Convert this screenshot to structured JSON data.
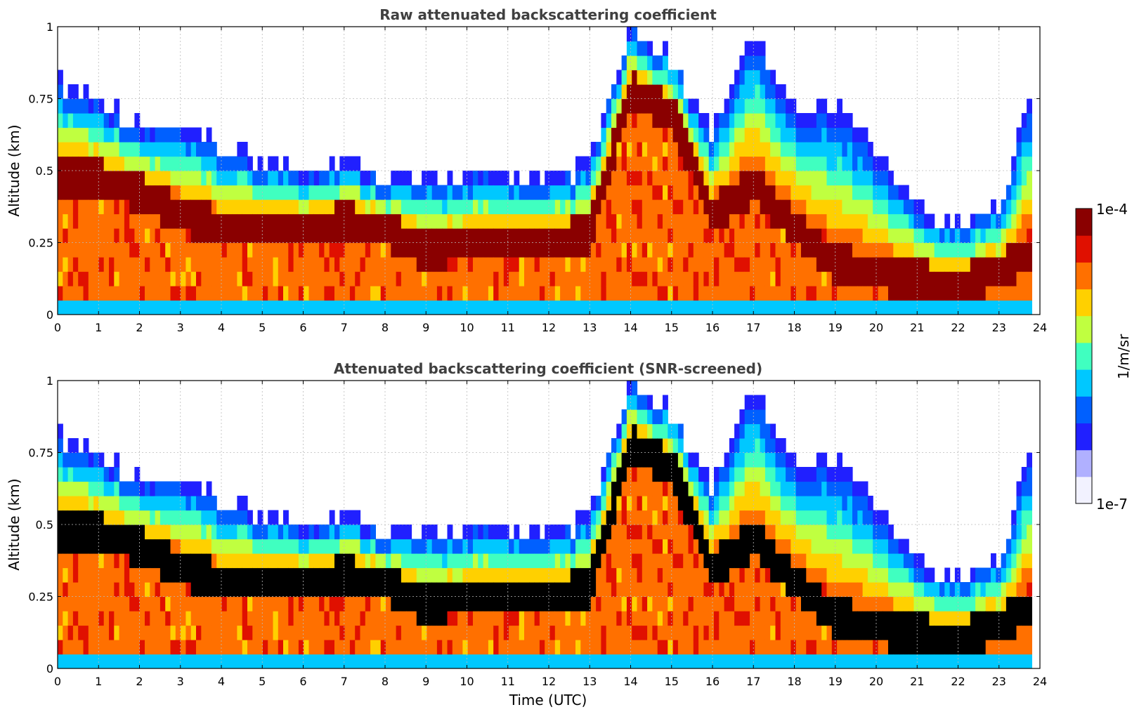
{
  "chart_data": [
    {
      "type": "heatmap",
      "title": "Raw attenuated backscattering coefficient",
      "xlabel": "",
      "ylabel": "Altitude (km)",
      "xlim": [
        0,
        24
      ],
      "ylim": [
        0,
        1
      ],
      "x_ticks": [
        "0",
        "1",
        "2",
        "3",
        "4",
        "5",
        "6",
        "7",
        "8",
        "9",
        "10",
        "11",
        "12",
        "13",
        "14",
        "15",
        "16",
        "17",
        "18",
        "19",
        "20",
        "21",
        "22",
        "23",
        "24"
      ],
      "y_ticks": [
        "0",
        "0.25",
        "0.5",
        "0.75",
        "1"
      ],
      "y_tick_values": [
        0,
        0.25,
        0.5,
        0.75,
        1
      ],
      "grid": true,
      "screened": false,
      "layer_top_km": {
        "time_utc": [
          0,
          1,
          2,
          3,
          4,
          5,
          6,
          7,
          8,
          9,
          10,
          11,
          12,
          13,
          14,
          15,
          16,
          17,
          18,
          19,
          20,
          21,
          22,
          23,
          23.8
        ],
        "top": [
          0.78,
          0.72,
          0.62,
          0.62,
          0.55,
          0.5,
          0.48,
          0.5,
          0.45,
          0.43,
          0.45,
          0.45,
          0.42,
          0.5,
          0.95,
          0.85,
          0.6,
          0.95,
          0.7,
          0.7,
          0.55,
          0.35,
          0.28,
          0.35,
          0.75
        ]
      },
      "layer_peak_km": {
        "time_utc": [
          0,
          1,
          2,
          3,
          4,
          5,
          6,
          7,
          8,
          9,
          10,
          11,
          12,
          13,
          14,
          15,
          16,
          17,
          18,
          19,
          20,
          21,
          22,
          23,
          23.8
        ],
        "peak": [
          0.48,
          0.47,
          0.42,
          0.35,
          0.3,
          0.3,
          0.3,
          0.32,
          0.3,
          0.22,
          0.25,
          0.25,
          0.25,
          0.28,
          0.78,
          0.7,
          0.35,
          0.45,
          0.3,
          0.18,
          0.14,
          0.12,
          0.1,
          0.15,
          0.22
        ]
      }
    },
    {
      "type": "heatmap",
      "title": "Attenuated backscattering coefficient (SNR-screened)",
      "xlabel": "Time (UTC)",
      "ylabel": "Altitude (km)",
      "xlim": [
        0,
        24
      ],
      "ylim": [
        0,
        1
      ],
      "x_ticks": [
        "0",
        "1",
        "2",
        "3",
        "4",
        "5",
        "6",
        "7",
        "8",
        "9",
        "10",
        "11",
        "12",
        "13",
        "14",
        "15",
        "16",
        "17",
        "18",
        "19",
        "20",
        "21",
        "22",
        "23",
        "24"
      ],
      "y_ticks": [
        "0",
        "0.25",
        "0.5",
        "0.75",
        "1"
      ],
      "y_tick_values": [
        0,
        0.25,
        0.5,
        0.75,
        1
      ],
      "grid": true,
      "screened": true
    }
  ],
  "colorbar": {
    "label": "1/m/sr",
    "max_label": "1e-4",
    "min_label": "1e-7",
    "scale": "log",
    "range": [
      1e-07,
      0.0001
    ],
    "colors": [
      "#f2f2ff",
      "#b0b0ff",
      "#2020ff",
      "#0060ff",
      "#00c8ff",
      "#40ffc0",
      "#c0ff40",
      "#ffd000",
      "#ff7000",
      "#e01000",
      "#8a0000"
    ]
  }
}
